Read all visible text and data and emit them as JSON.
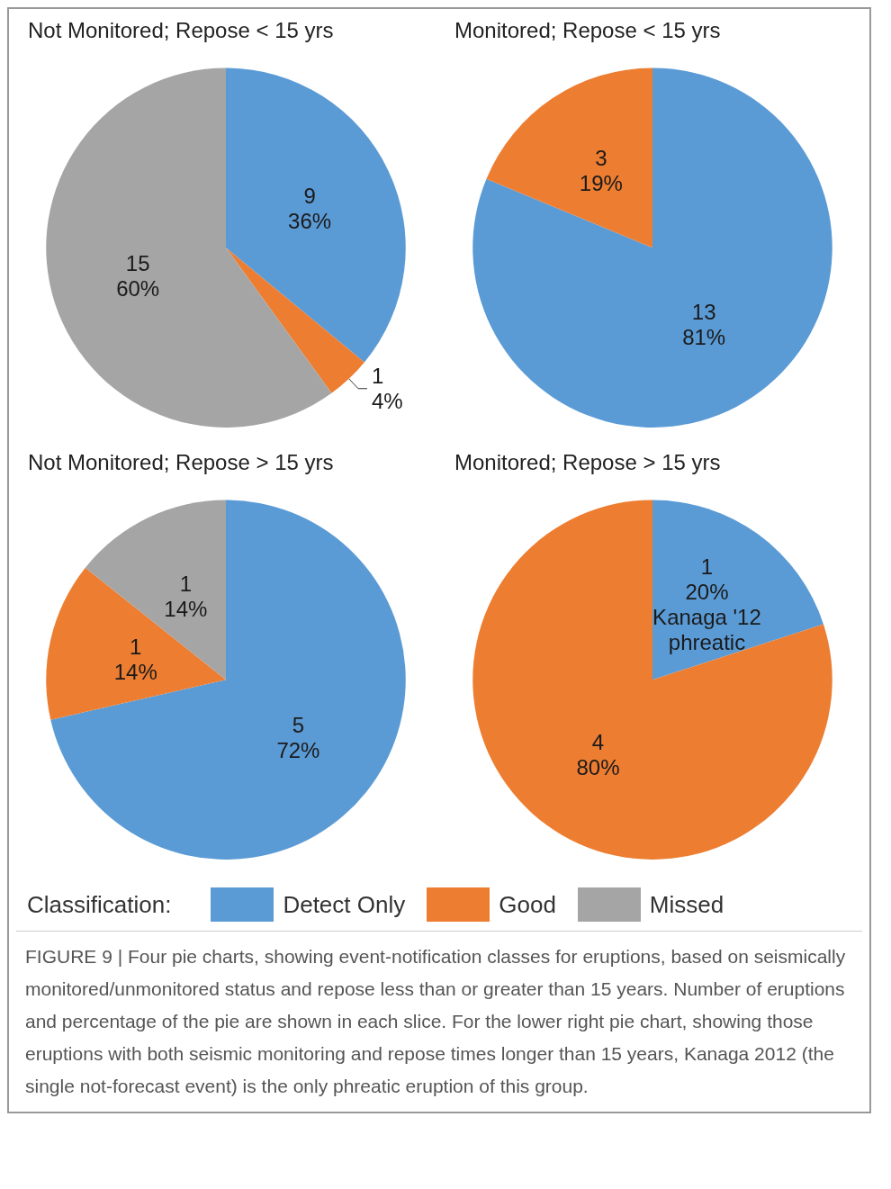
{
  "chart_data": [
    {
      "type": "pie",
      "title": "Not Monitored; Repose < 15 yrs",
      "categories": [
        "Detect Only",
        "Good",
        "Missed"
      ],
      "values": [
        9,
        1,
        15
      ],
      "colors": [
        "#5b9bd5",
        "#ed7d31",
        "#a5a5a5"
      ],
      "value_labels": [
        "9\n36%",
        "1\n4%",
        "15\n60%"
      ],
      "legend": "bottom",
      "legend_title": "Classification:"
    },
    {
      "type": "pie",
      "title": "Monitored; Repose < 15 yrs",
      "categories": [
        null,
        null
      ],
      "values": [
        13,
        3
      ],
      "colors": [
        "#5b9bd5",
        "#ed7d31"
      ],
      "value_labels": [
        "13\n81%",
        "3\n19%"
      ]
    },
    {
      "type": "pie",
      "title": "Not Monitored; Repose > 15 yrs",
      "categories": [
        null,
        null,
        null
      ],
      "values": [
        5,
        1,
        1
      ],
      "colors": [
        "#5b9bd5",
        "#ed7d31",
        "#a5a5a5"
      ],
      "value_labels": [
        "5\n72%",
        "1\n14%",
        "1\n14%"
      ]
    },
    {
      "type": "pie",
      "title": "Monitored; Repose > 15 yrs",
      "categories": [
        null,
        null
      ],
      "values": [
        1,
        4
      ],
      "colors": [
        "#5b9bd5",
        "#ed7d31"
      ],
      "value_labels": [
        "1\n20%\nKanaga '12\nphreatic",
        "4\n80%"
      ],
      "annotations": [
        "FIGURE 9 | Four pie charts, showing event-notification classes for eruptions, based on seismically monitored/unmonitored status and repose less than or greater than 15 years. Number of eruptions and percentage of the pie are shown in each slice. For the lower right pie chart, showing those eruptions with both seismic monitoring and repose times longer than 15 years, Kanaga 2012 (the single not-forecast event) is the only phreatic eruption of this group."
      ]
    }
  ]
}
